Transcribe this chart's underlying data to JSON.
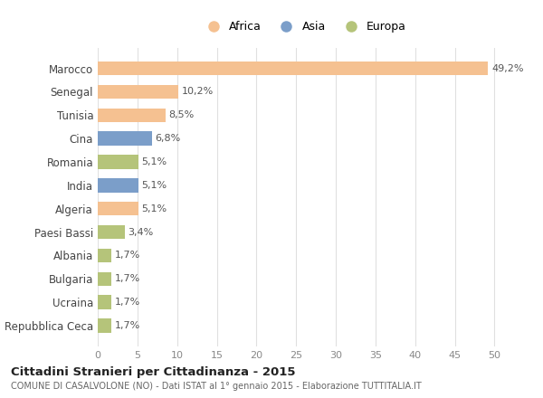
{
  "categories": [
    "Marocco",
    "Senegal",
    "Tunisia",
    "Cina",
    "Romania",
    "India",
    "Algeria",
    "Paesi Bassi",
    "Albania",
    "Bulgaria",
    "Ucraina",
    "Repubblica Ceca"
  ],
  "values": [
    49.2,
    10.2,
    8.5,
    6.8,
    5.1,
    5.1,
    5.1,
    3.4,
    1.7,
    1.7,
    1.7,
    1.7
  ],
  "labels": [
    "49,2%",
    "10,2%",
    "8,5%",
    "6,8%",
    "5,1%",
    "5,1%",
    "5,1%",
    "3,4%",
    "1,7%",
    "1,7%",
    "1,7%",
    "1,7%"
  ],
  "colors": [
    "#f5c191",
    "#f5c191",
    "#f5c191",
    "#7b9ec9",
    "#b5c47a",
    "#7b9ec9",
    "#f5c191",
    "#b5c47a",
    "#b5c47a",
    "#b5c47a",
    "#b5c47a",
    "#b5c47a"
  ],
  "legend_labels": [
    "Africa",
    "Asia",
    "Europa"
  ],
  "legend_colors": [
    "#f5c191",
    "#7b9ec9",
    "#b5c47a"
  ],
  "xlim": [
    0,
    52
  ],
  "xticks": [
    0,
    5,
    10,
    15,
    20,
    25,
    30,
    35,
    40,
    45,
    50
  ],
  "title": "Cittadini Stranieri per Cittadinanza - 2015",
  "subtitle": "COMUNE DI CASALVOLONE (NO) - Dati ISTAT al 1° gennaio 2015 - Elaborazione TUTTITALIA.IT",
  "background_color": "#ffffff",
  "grid_color": "#e0e0e0"
}
